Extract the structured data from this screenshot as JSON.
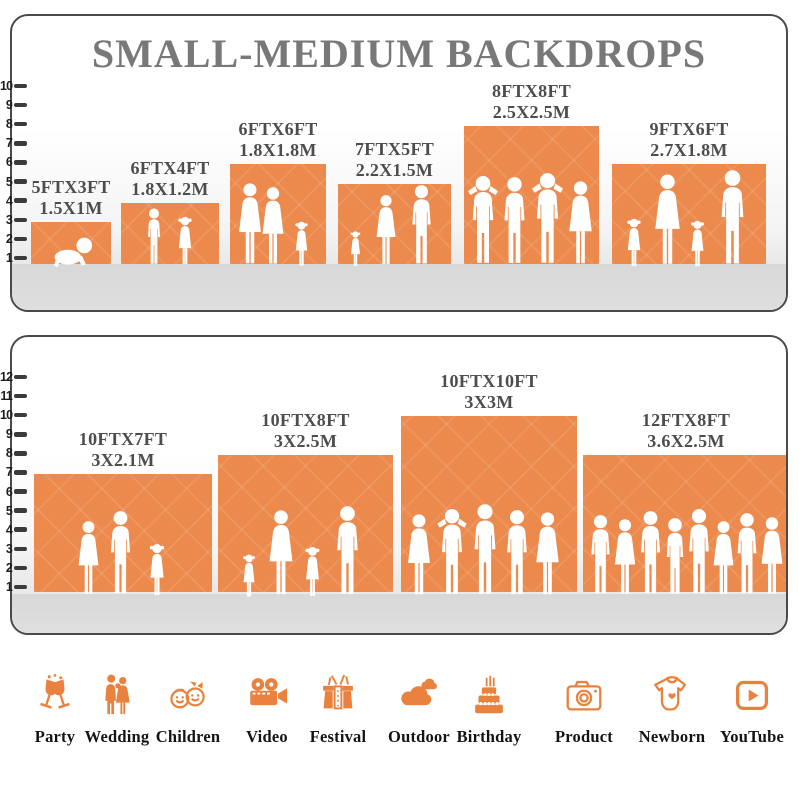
{
  "title": "SMALL-MEDIUM BACKDROPS",
  "panel1": {
    "scale": [
      "10",
      "9",
      "8",
      "7",
      "6",
      "5",
      "4",
      "3",
      "2",
      "1"
    ],
    "backdrops": [
      {
        "ft": "5FTX3FT",
        "m": "1.5X1M"
      },
      {
        "ft": "6FTX4FT",
        "m": "1.8X1.2M"
      },
      {
        "ft": "6FTX6FT",
        "m": "1.8X1.8M"
      },
      {
        "ft": "7FTX5FT",
        "m": "2.2X1.5M"
      },
      {
        "ft": "8FTX8FT",
        "m": "2.5X2.5M"
      },
      {
        "ft": "9FTX6FT",
        "m": "2.7X1.8M"
      }
    ]
  },
  "panel2": {
    "scale": [
      "12",
      "11",
      "10",
      "9",
      "8",
      "7",
      "6",
      "5",
      "4",
      "3",
      "2",
      "1"
    ],
    "backdrops": [
      {
        "ft": "10FTX7FT",
        "m": "3X2.1M"
      },
      {
        "ft": "10FTX8FT",
        "m": "3X2.5M"
      },
      {
        "ft": "10FTX10FT",
        "m": "3X3M"
      },
      {
        "ft": "12FTX8FT",
        "m": "3.6X2.5M"
      }
    ]
  },
  "categories": [
    {
      "label": "Party",
      "icon": "party-icon"
    },
    {
      "label": "Wedding",
      "icon": "wedding-icon"
    },
    {
      "label": "Children",
      "icon": "children-icon"
    },
    {
      "label": "Video",
      "icon": "video-icon"
    },
    {
      "label": "Festival",
      "icon": "festival-icon"
    },
    {
      "label": "Outdoor",
      "icon": "outdoor-icon"
    },
    {
      "label": "Birthday",
      "icon": "birthday-icon"
    },
    {
      "label": "Product",
      "icon": "product-icon"
    },
    {
      "label": "Newborn",
      "icon": "newborn-icon"
    },
    {
      "label": "YouTube",
      "icon": "youtube-icon"
    }
  ],
  "colors": {
    "backdrop_orange": "#EC8A4D",
    "icon_orange": "#E8823E",
    "title_gray": "#787878",
    "label_gray": "#4D4D4D",
    "ground_gray": "#DADADA"
  }
}
